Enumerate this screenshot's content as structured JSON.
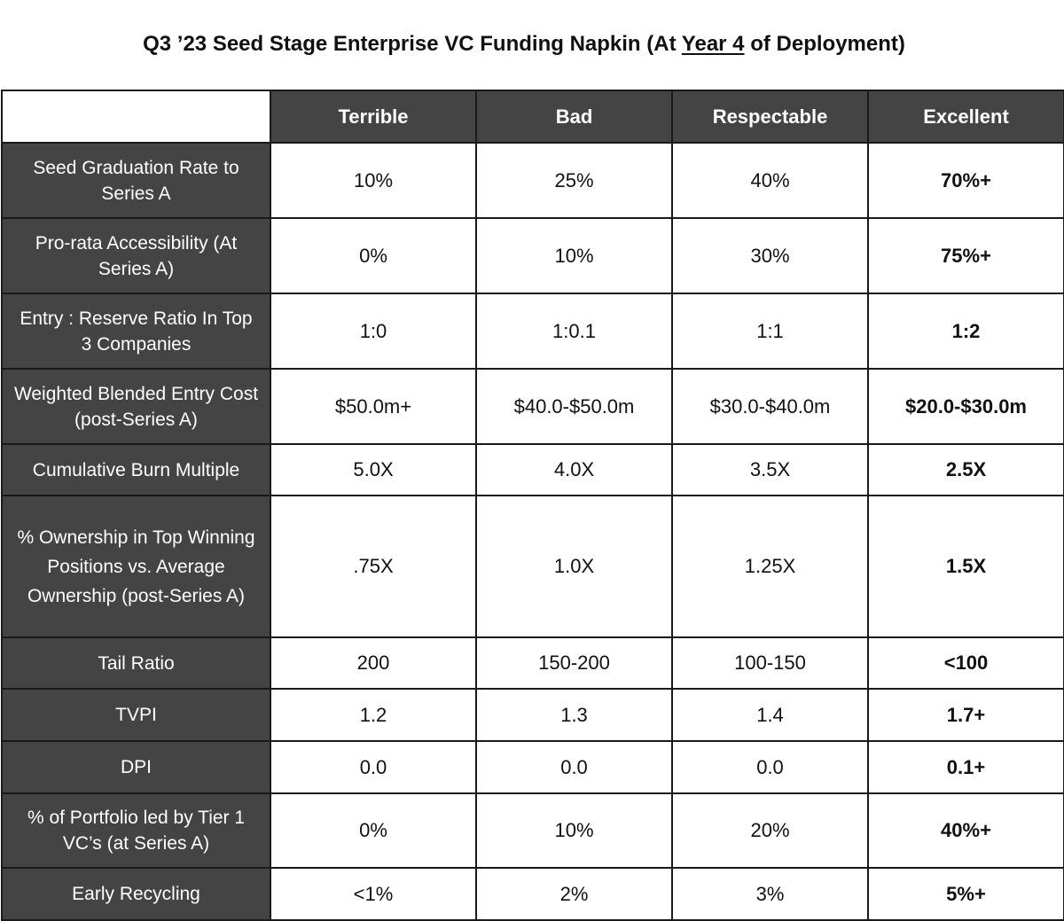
{
  "title": {
    "prefix": "Q3 ’23 Seed Stage Enterprise VC Funding Napkin (At ",
    "underlined": "Year 4",
    "suffix": " of Deployment)"
  },
  "columns": [
    "Terrible",
    "Bad",
    "Respectable",
    "Excellent"
  ],
  "rows": [
    {
      "metric": "Seed Graduation Rate to Series A",
      "values": [
        "10%",
        "25%",
        "40%",
        "70%+"
      ]
    },
    {
      "metric": "Pro-rata Accessibility (At Series A)",
      "values": [
        "0%",
        "10%",
        "30%",
        "75%+"
      ]
    },
    {
      "metric": "Entry : Reserve Ratio In Top 3 Companies",
      "values": [
        "1:0",
        "1:0.1",
        "1:1",
        "1:2"
      ]
    },
    {
      "metric": "Weighted Blended Entry Cost (post-Series A)",
      "values": [
        "$50.0m+",
        "$40.0-$50.0m",
        "$30.0-$40.0m",
        "$20.0-$30.0m"
      ]
    },
    {
      "metric": "Cumulative Burn Multiple",
      "values": [
        "5.0X",
        "4.0X",
        "3.5X",
        "2.5X"
      ]
    },
    {
      "metric": "% Ownership in Top Winning Positions vs. Average Ownership (post-Series A)",
      "values": [
        ".75X",
        "1.0X",
        "1.25X",
        "1.5X"
      ]
    },
    {
      "metric": "Tail Ratio",
      "values": [
        "200",
        "150-200",
        "100-150",
        "<100"
      ]
    },
    {
      "metric": "TVPI",
      "values": [
        "1.2",
        "1.3",
        "1.4",
        "1.7+"
      ]
    },
    {
      "metric": "DPI",
      "values": [
        "0.0",
        "0.0",
        "0.0",
        "0.1+"
      ]
    },
    {
      "metric": "% of Portfolio led by Tier 1 VC’s (at Series A)",
      "values": [
        "0%",
        "10%",
        "20%",
        "40%+"
      ]
    },
    {
      "metric": "Early Recycling",
      "values": [
        "<1%",
        "2%",
        "3%",
        "5%+"
      ]
    }
  ],
  "colors": {
    "header_bg": "#444444",
    "header_text": "#ffffff",
    "cell_bg": "#ffffff",
    "border": "#1a1a1a"
  }
}
